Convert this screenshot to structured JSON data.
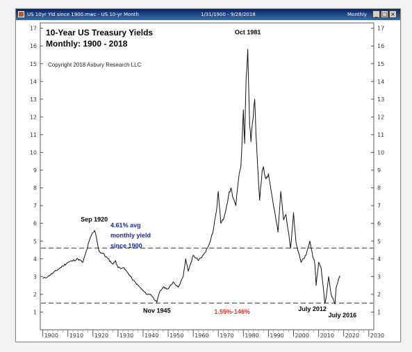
{
  "window": {
    "title_left": "US 10yr Yld since 1900.mwc - US 10-yr Month",
    "date_range": "1/31/1900 - 9/28/2018",
    "period": "Monthly",
    "btn_min": "_",
    "btn_max": "□",
    "btn_close": "×"
  },
  "chart_data": {
    "type": "line",
    "title": "10-Year US Treasury Yields",
    "subtitle": "Monthly: 1900 - 2018",
    "copyright": "Copyright 2018 Asbury Research LLC",
    "xlabel": "",
    "ylabel": "",
    "xlim": [
      1899,
      2032
    ],
    "ylim": [
      0,
      17.3
    ],
    "grid": false,
    "x_ticks": [
      1900,
      1910,
      1920,
      1930,
      1940,
      1950,
      1960,
      1970,
      1980,
      1990,
      2000,
      2010,
      2020,
      2030
    ],
    "y_ticks": [
      1,
      2,
      3,
      4,
      5,
      6,
      7,
      8,
      9,
      10,
      11,
      12,
      13,
      14,
      15,
      16,
      17
    ],
    "series": [
      {
        "x": [
          1900,
          1902,
          1904,
          1906,
          1908,
          1910,
          1912,
          1914,
          1916,
          1917.5,
          1918.5,
          1919.3,
          1920.7,
          1921.5,
          1922.5,
          1924,
          1926,
          1928,
          1929,
          1930,
          1932,
          1934,
          1936,
          1938,
          1940,
          1941.5,
          1943,
          1945.5,
          1946.5,
          1948,
          1950,
          1952,
          1954,
          1956,
          1957,
          1958,
          1960,
          1962,
          1964,
          1966,
          1968,
          1969.5,
          1970,
          1971,
          1972,
          1974,
          1975,
          1976,
          1977,
          1978,
          1979,
          1980,
          1980.5,
          1981.1,
          1981.75,
          1982.5,
          1983,
          1984.5,
          1985,
          1986.5,
          1987.5,
          1988,
          1989,
          1990,
          1991,
          1993.8,
          1994.9,
          1996,
          1997,
          1998.8,
          2000,
          2001,
          2003,
          2005,
          2006.5,
          2007,
          2008.5,
          2009,
          2010,
          2011,
          2012.5,
          2013,
          2014,
          2015,
          2016.5,
          2017,
          2018.5
        ],
        "values": [
          2.9,
          3.0,
          3.2,
          3.4,
          3.6,
          3.8,
          3.9,
          4.0,
          3.8,
          4.5,
          5.0,
          5.3,
          5.6,
          5.1,
          4.4,
          4.3,
          4.0,
          3.7,
          3.9,
          3.5,
          3.5,
          3.2,
          2.8,
          2.5,
          2.2,
          2.0,
          2.0,
          1.55,
          2.1,
          2.4,
          2.3,
          2.7,
          2.4,
          3.0,
          4.0,
          3.3,
          4.2,
          3.9,
          4.2,
          4.7,
          5.6,
          7.0,
          7.8,
          6.0,
          6.2,
          7.5,
          8.0,
          7.4,
          7.0,
          8.4,
          9.2,
          12.4,
          10.5,
          14.2,
          15.8,
          11.5,
          10.6,
          13.0,
          11.0,
          7.3,
          9.0,
          9.2,
          8.5,
          8.8,
          7.9,
          5.5,
          7.8,
          6.2,
          6.5,
          4.6,
          6.6,
          4.9,
          3.8,
          4.2,
          5.0,
          4.6,
          3.7,
          2.5,
          3.8,
          3.5,
          1.5,
          1.8,
          3.0,
          2.0,
          1.45,
          2.4,
          3.05
        ]
      }
    ],
    "reference_lines": [
      {
        "value": 4.61,
        "style": "dashed"
      },
      {
        "value": 1.5,
        "style": "dashed"
      }
    ],
    "annotations": [
      {
        "text": "Oct 1981",
        "x": 1981.75,
        "y": 16.65,
        "color": "#000000"
      },
      {
        "text": "Sep 1920",
        "x": 1920.5,
        "y": 6.1,
        "color": "#000000"
      },
      {
        "text": "Nov 1945",
        "x": 1945.5,
        "y": 0.95,
        "color": "#000000"
      },
      {
        "text": "July 2012",
        "x": 2007.5,
        "y": 1.05,
        "color": "#000000"
      },
      {
        "text": "July 2016",
        "x": 2019.5,
        "y": 0.7,
        "color": "#000000"
      },
      {
        "text": "1.55%-146%",
        "x": 1975.5,
        "y": 0.9,
        "color": "#e63232"
      },
      {
        "text": "4.61% avg",
        "x": 1927,
        "y": 5.78,
        "color": "#1a2fa0"
      },
      {
        "text": "monthly yield",
        "x": 1927,
        "y": 5.2,
        "color": "#1a2fa0"
      },
      {
        "text": "since 1900",
        "x": 1927,
        "y": 4.62,
        "color": "#1a2fa0"
      }
    ]
  }
}
